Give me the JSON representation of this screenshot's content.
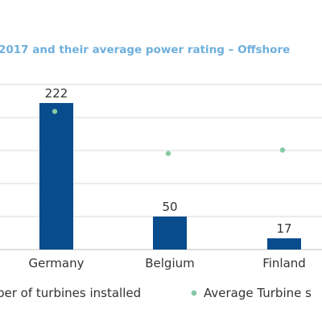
{
  "chart_data": {
    "type": "bar",
    "title": "2017 and their average power rating – Offshore",
    "categories": [
      "Germany",
      "Belgium",
      "Finland"
    ],
    "series": [
      {
        "name": "ber of turbines installed",
        "kind": "bar",
        "color": "#084c8d",
        "values": [
          222,
          50,
          17
        ],
        "data_labels": [
          "222",
          "50",
          "17"
        ]
      },
      {
        "name": "Average Turbine s",
        "kind": "scatter",
        "color": "#86c8a4",
        "values": [
          245,
          147,
          155
        ]
      }
    ],
    "ylim": [
      0,
      260
    ],
    "gridlines": [
      0,
      50,
      100,
      150,
      200,
      250
    ],
    "grid": true,
    "legend": "bottom",
    "colors": {
      "title": "#6fb0dd",
      "grid": "#d9d9d9",
      "axis": "#bfbfbf",
      "text": "#333333"
    }
  }
}
